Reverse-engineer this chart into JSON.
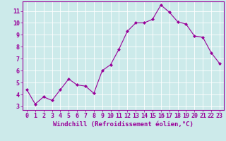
{
  "x": [
    0,
    1,
    2,
    3,
    4,
    5,
    6,
    7,
    8,
    9,
    10,
    11,
    12,
    13,
    14,
    15,
    16,
    17,
    18,
    19,
    20,
    21,
    22,
    23
  ],
  "y": [
    4.4,
    3.2,
    3.8,
    3.5,
    4.4,
    5.3,
    4.8,
    4.7,
    4.1,
    6.0,
    6.5,
    7.8,
    9.3,
    10.0,
    10.0,
    10.3,
    11.5,
    10.9,
    10.1,
    9.9,
    8.9,
    8.8,
    7.5,
    6.6
  ],
  "line_color": "#990099",
  "marker": "D",
  "marker_size": 2.0,
  "bg_color": "#cceaea",
  "grid_color": "#ffffff",
  "xlabel": "Windchill (Refroidissement éolien,°C)",
  "xlabel_fontsize": 6.5,
  "tick_fontsize": 6.0,
  "ylabel_ticks": [
    3,
    4,
    5,
    6,
    7,
    8,
    9,
    10,
    11
  ],
  "xlim": [
    -0.5,
    23.5
  ],
  "ylim": [
    2.7,
    11.8
  ],
  "xticks": [
    0,
    1,
    2,
    3,
    4,
    5,
    6,
    7,
    8,
    9,
    10,
    11,
    12,
    13,
    14,
    15,
    16,
    17,
    18,
    19,
    20,
    21,
    22,
    23
  ]
}
